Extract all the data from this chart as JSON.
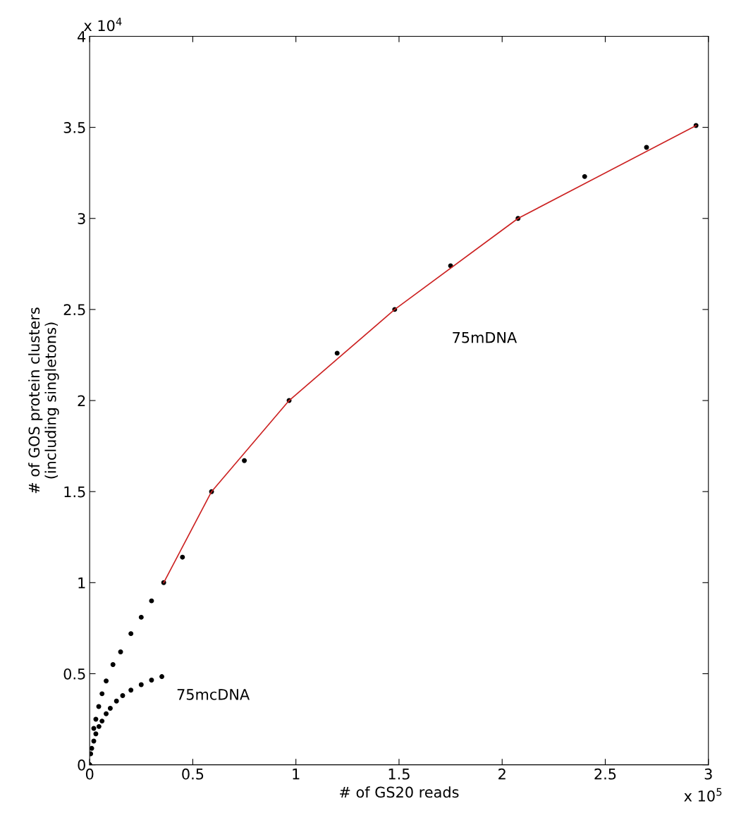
{
  "chart_data": {
    "type": "scatter",
    "xlabel": "# of GS20 reads",
    "ylabel": "# of GOS protein clusters\n(including singletons)",
    "xlim": [
      0,
      3
    ],
    "xticks": [
      0,
      0.5,
      1,
      1.5,
      2,
      2.5,
      3
    ],
    "ylim": [
      0,
      4
    ],
    "yticks": [
      0,
      0.5,
      1,
      1.5,
      2,
      2.5,
      3,
      3.5,
      4
    ],
    "grid": false,
    "marker": "circle",
    "series": [
      {
        "color": "#000000",
        "x": [
          0,
          0.02,
          0.03,
          0.044,
          0.06,
          0.08,
          0.113,
          0.15,
          0.2,
          0.25,
          0.3,
          0.359,
          0.45,
          0.591,
          0.75,
          0.967,
          1.2,
          1.479,
          1.75,
          2.077,
          2.4,
          2.7,
          2.94
        ],
        "values": [
          0,
          0.2,
          0.25,
          0.32,
          0.39,
          0.46,
          0.55,
          0.62,
          0.72,
          0.81,
          0.9,
          1.0,
          1.14,
          1.5,
          1.67,
          2.0,
          2.26,
          2.5,
          2.74,
          3.0,
          3.23,
          3.39,
          3.51
        ]
      },
      {
        "type": "line",
        "color": "#cc2222",
        "marker": "none",
        "x": [
          0.359,
          0.591,
          0.967,
          1.479,
          2.077,
          2.94
        ],
        "values": [
          1.0,
          1.5,
          2.0,
          2.5,
          3.0,
          3.51
        ]
      },
      {
        "color": "#000000",
        "x": [
          0,
          0.005,
          0.01,
          0.02,
          0.03,
          0.045,
          0.06,
          0.08,
          0.1,
          0.13,
          0.16,
          0.2,
          0.25,
          0.3,
          0.35
        ],
        "values": [
          0,
          0.06,
          0.09,
          0.13,
          0.17,
          0.21,
          0.24,
          0.28,
          0.31,
          0.35,
          0.38,
          0.41,
          0.44,
          0.465,
          0.484
        ]
      }
    ],
    "annotations": [
      "75mDNA",
      "75mcDNA",
      "x 10$^{4}$",
      "x 10$^{5}$"
    ]
  }
}
